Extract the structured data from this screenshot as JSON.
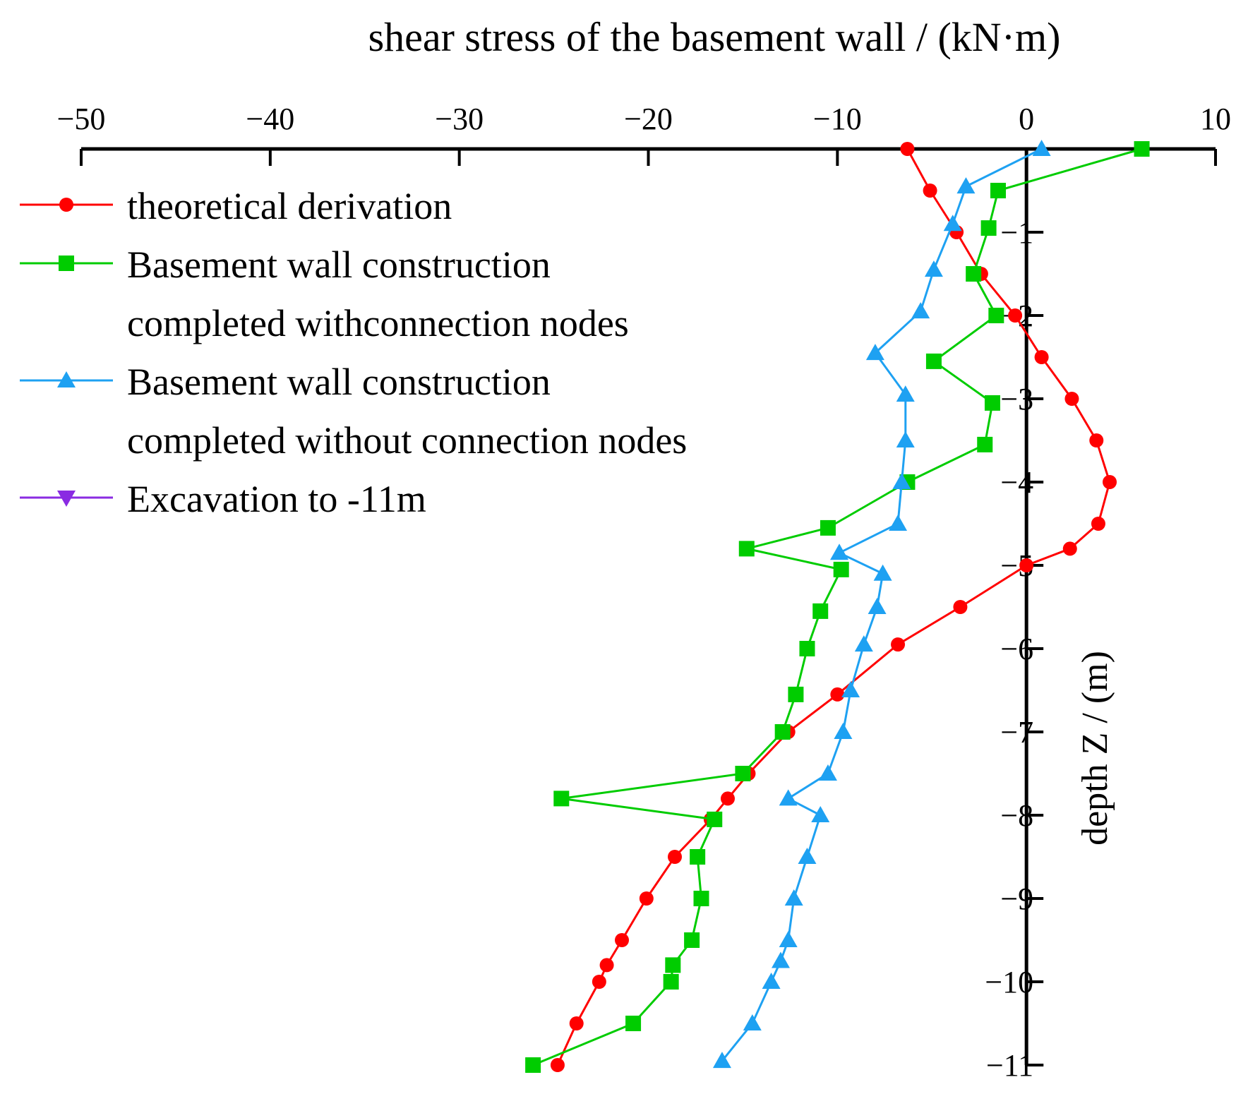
{
  "chart_data": {
    "type": "line",
    "title": "shear stress of the basement wall / (kN·m)",
    "xlabel": "shear stress of the basement wall / (kN·m)",
    "ylabel": "depth Z / (m)",
    "xlim": [
      -50,
      10
    ],
    "ylim": [
      -11,
      0
    ],
    "x_ticks": [
      -50,
      -40,
      -30,
      -20,
      -10,
      0,
      10
    ],
    "x_tick_labels": [
      "−50",
      "−40",
      "−30",
      "−20",
      "−10",
      "0",
      "10"
    ],
    "y_ticks": [
      -1,
      -2,
      -3,
      -4,
      -5,
      -6,
      -7,
      -8,
      -9,
      -10,
      -11
    ],
    "y_tick_labels": [
      "−1",
      "−2",
      "−3",
      "−4",
      "−5",
      "−6",
      "−7",
      "−8",
      "−9",
      "−10",
      "−11"
    ],
    "x_axis_position": "top",
    "y_axis_position": "at x = 0",
    "grid": false,
    "legend_position": "top-left",
    "series": [
      {
        "name": "theoretical derivation",
        "legend_lines": [
          "theoretical derivation"
        ],
        "color": "#ff0000",
        "marker": "circle",
        "points": [
          [
            -6.3,
            0
          ],
          [
            -5.1,
            -0.5
          ],
          [
            -3.7,
            -1.0
          ],
          [
            -2.4,
            -1.5
          ],
          [
            -0.6,
            -2.0
          ],
          [
            0.8,
            -2.5
          ],
          [
            2.4,
            -3.0
          ],
          [
            3.7,
            -3.5
          ],
          [
            4.4,
            -4.0
          ],
          [
            3.8,
            -4.5
          ],
          [
            2.3,
            -4.8
          ],
          [
            0.0,
            -5.0
          ],
          [
            -3.5,
            -5.5
          ],
          [
            -6.8,
            -5.95
          ],
          [
            -10.0,
            -6.55
          ],
          [
            -12.6,
            -7.0
          ],
          [
            -14.7,
            -7.5
          ],
          [
            -15.8,
            -7.8
          ],
          [
            -16.7,
            -8.05
          ],
          [
            -18.6,
            -8.5
          ],
          [
            -20.1,
            -9.0
          ],
          [
            -21.4,
            -9.5
          ],
          [
            -22.2,
            -9.8
          ],
          [
            -22.6,
            -10.0
          ],
          [
            -23.8,
            -10.5
          ],
          [
            -24.8,
            -11.0
          ]
        ]
      },
      {
        "name": "Basement wall construction completed withconnection nodes",
        "legend_lines": [
          "Basement wall construction",
          "completed withconnection nodes"
        ],
        "color": "#00cc00",
        "marker": "square",
        "points": [
          [
            6.1,
            0
          ],
          [
            -1.5,
            -0.5
          ],
          [
            -2.0,
            -0.95
          ],
          [
            -2.8,
            -1.5
          ],
          [
            -1.6,
            -2.0
          ],
          [
            -4.9,
            -2.55
          ],
          [
            -1.8,
            -3.05
          ],
          [
            -2.2,
            -3.55
          ],
          [
            -6.3,
            -4.0
          ],
          [
            -10.5,
            -4.55
          ],
          [
            -14.8,
            -4.8
          ],
          [
            -9.8,
            -5.05
          ],
          [
            -10.9,
            -5.55
          ],
          [
            -11.6,
            -6.0
          ],
          [
            -12.2,
            -6.55
          ],
          [
            -12.9,
            -7.0
          ],
          [
            -15.0,
            -7.5
          ],
          [
            -24.6,
            -7.8
          ],
          [
            -16.5,
            -8.05
          ],
          [
            -17.4,
            -8.5
          ],
          [
            -17.2,
            -9.0
          ],
          [
            -17.7,
            -9.5
          ],
          [
            -18.7,
            -9.8
          ],
          [
            -18.8,
            -10.0
          ],
          [
            -20.8,
            -10.5
          ],
          [
            -26.1,
            -11.0
          ]
        ]
      },
      {
        "name": "Basement wall construction completed without connection nodes",
        "legend_lines": [
          "Basement wall construction",
          "completed without connection nodes"
        ],
        "color": "#1ea1f2",
        "marker": "triangle-up",
        "points": [
          [
            0.8,
            0
          ],
          [
            -3.2,
            -0.45
          ],
          [
            -3.9,
            -0.9
          ],
          [
            -4.9,
            -1.45
          ],
          [
            -5.6,
            -1.95
          ],
          [
            -8.0,
            -2.45
          ],
          [
            -6.4,
            -2.95
          ],
          [
            -6.4,
            -3.5
          ],
          [
            -6.6,
            -4.0
          ],
          [
            -6.8,
            -4.5
          ],
          [
            -9.9,
            -4.85
          ],
          [
            -7.6,
            -5.1
          ],
          [
            -7.9,
            -5.5
          ],
          [
            -8.6,
            -5.95
          ],
          [
            -9.3,
            -6.5
          ],
          [
            -9.7,
            -7.0
          ],
          [
            -10.5,
            -7.5
          ],
          [
            -12.6,
            -7.8
          ],
          [
            -10.9,
            -8.0
          ],
          [
            -11.6,
            -8.5
          ],
          [
            -12.3,
            -9.0
          ],
          [
            -12.6,
            -9.5
          ],
          [
            -13.0,
            -9.75
          ],
          [
            -13.5,
            -10.0
          ],
          [
            -14.5,
            -10.5
          ],
          [
            -16.1,
            -10.95
          ]
        ]
      },
      {
        "name": "Excavation to -11m",
        "legend_lines": [
          "Excavation to -11m"
        ],
        "color": "#8a2be2",
        "marker": "triangle-down",
        "points": []
      }
    ]
  }
}
